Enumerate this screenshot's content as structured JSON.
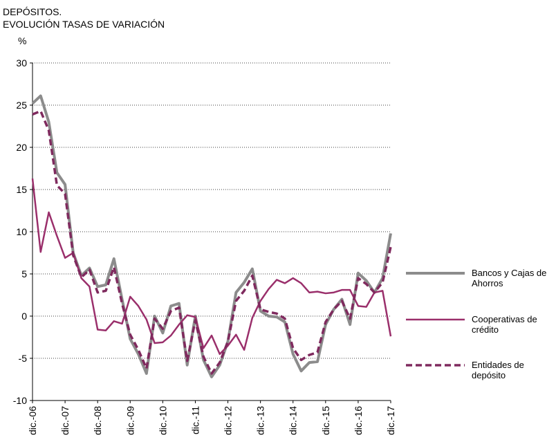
{
  "chart_data": {
    "type": "line",
    "title": "DEPÓSITOS.",
    "subtitle": "EVOLUCIÓN TASAS DE VARIACIÓN",
    "y_label": "%",
    "categories": [
      "dic.-06",
      null,
      null,
      null,
      "dic.-07",
      null,
      null,
      null,
      "dic.-08",
      null,
      null,
      null,
      "dic.-09",
      null,
      null,
      null,
      "dic.-10",
      null,
      null,
      null,
      "dic.-11",
      null,
      null,
      null,
      "dic.-12",
      null,
      null,
      null,
      "dic.-13",
      null,
      null,
      null,
      "dic.-14",
      null,
      null,
      null,
      "dic.-15",
      null,
      null,
      null,
      "dic.-16",
      null,
      null,
      null,
      "dic.-17"
    ],
    "series": [
      {
        "name": "Bancos y Cajas de Ahorros",
        "color": "#8c8c8c",
        "dash": false,
        "width": 4,
        "values": [
          25.2,
          26.1,
          23,
          17,
          15.6,
          7.5,
          4.8,
          5.7,
          3.5,
          3.7,
          6.8,
          2.0,
          -2.7,
          -4.5,
          -6.8,
          0,
          -2,
          1.2,
          1.5,
          -5.8,
          0,
          -5.2,
          -7.2,
          -5.8,
          -3,
          2.8,
          4,
          5.6,
          0.6,
          0,
          -0.1,
          -0.7,
          -4.5,
          -6.5,
          -5.5,
          -5.4,
          -1,
          0.8,
          2,
          -1,
          5.1,
          4.2,
          2.8,
          4.5,
          9.8
        ]
      },
      {
        "name": "Cooperativas de crédito",
        "color": "#9a2f6b",
        "dash": false,
        "width": 2.5,
        "values": [
          16.3,
          7.6,
          12.3,
          9.5,
          6.9,
          7.5,
          4.5,
          3.5,
          -1.6,
          -1.7,
          -0.6,
          -0.9,
          2.3,
          1.2,
          -0.4,
          -3.2,
          -3.1,
          -2.3,
          -1,
          0.1,
          -0.1,
          -3.8,
          -2.3,
          -4.5,
          -3.5,
          -2.2,
          -4,
          -0.2,
          1.8,
          3.2,
          4.3,
          3.9,
          4.5,
          3.9,
          2.8,
          2.9,
          2.7,
          2.8,
          3.1,
          3.1,
          1.2,
          1.1,
          2.8,
          3.0,
          -2.4
        ]
      },
      {
        "name": "Entidades de depósito",
        "color": "#7f2a5e",
        "dash": true,
        "width": 3.5,
        "values": [
          23.9,
          24.3,
          22,
          15.5,
          14.5,
          7.2,
          4.6,
          5.5,
          2.8,
          3.0,
          5.8,
          1.5,
          -2.2,
          -4,
          -6.2,
          -0.3,
          -1.5,
          0.6,
          1.0,
          -5.3,
          -0.5,
          -4.8,
          -6.8,
          -5.5,
          -3,
          1.8,
          3,
          4.8,
          0.8,
          0.5,
          0.3,
          -0.3,
          -3.8,
          -5.2,
          -4.6,
          -4.3,
          -0.7,
          0.8,
          1.8,
          -0.3,
          4.5,
          3.8,
          2.8,
          4,
          8.2
        ]
      }
    ],
    "ylim": [
      -10,
      30
    ],
    "yticks": [
      -10,
      -5,
      0,
      5,
      10,
      15,
      20,
      25,
      30
    ],
    "grid": true,
    "legend": "right"
  }
}
